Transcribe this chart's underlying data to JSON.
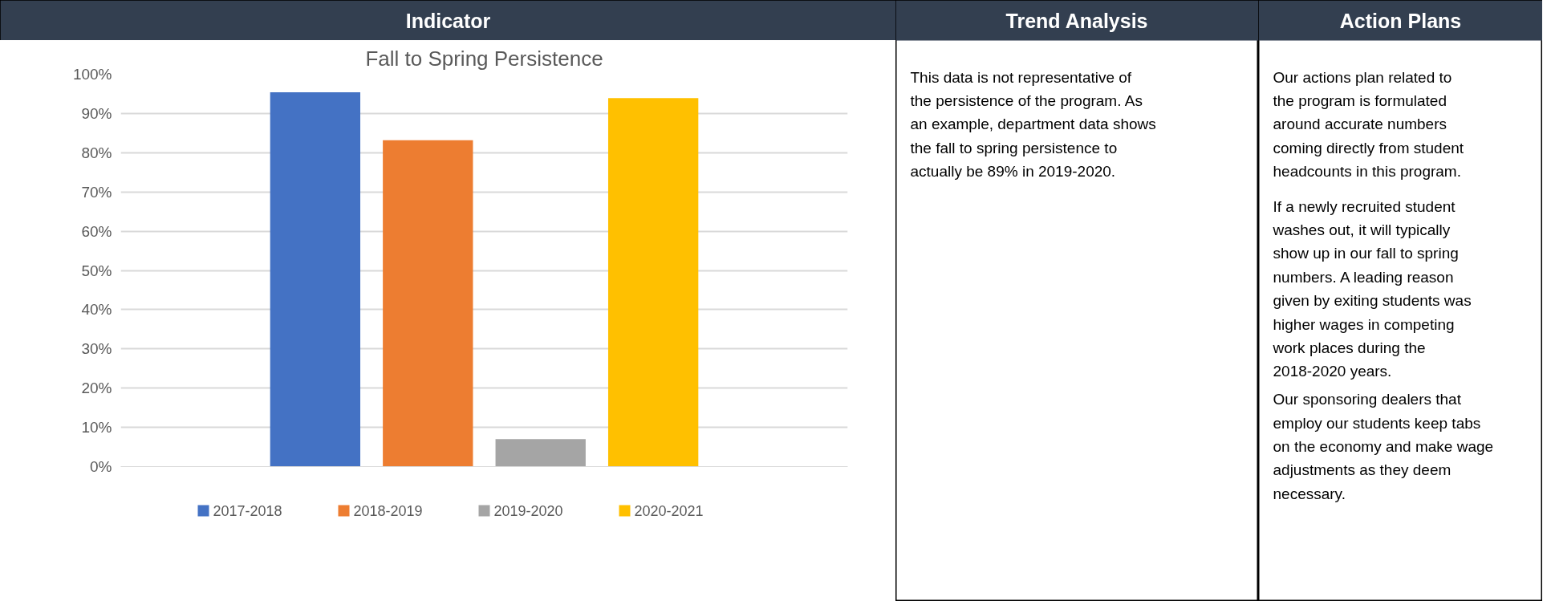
{
  "chart_data": [
    {
      "type": "other",
      "title": "Indicator"
    },
    {
      "type": "bar",
      "title": "Fall to Spring Persistence",
      "categories": [
        null
      ],
      "series": [
        {
          "name": "2017-2018",
          "color": "#4472c4",
          "values": [
            95.4
          ]
        },
        {
          "name": "2018-2019",
          "color": "#ed7d31",
          "values": [
            83.2
          ]
        },
        {
          "name": "2019-2020",
          "color": "#a5a5a5",
          "values": [
            7.0
          ]
        },
        {
          "name": "2020-2021",
          "color": "#ffc000",
          "values": [
            93.9
          ]
        }
      ],
      "ylim": [
        0,
        100
      ],
      "yticks": [
        {
          "value": 0,
          "label": "0%"
        },
        {
          "value": 10,
          "label": "10%"
        },
        {
          "value": 20,
          "label": "20%"
        },
        {
          "value": 30,
          "label": "30%"
        },
        {
          "value": 40,
          "label": "40%"
        },
        {
          "value": 50,
          "label": "50%"
        },
        {
          "value": 60,
          "label": "60%"
        },
        {
          "value": 70,
          "label": "70%"
        },
        {
          "value": 80,
          "label": "80%"
        },
        {
          "value": 90,
          "label": "90%"
        },
        {
          "value": 100,
          "label": "100%"
        }
      ],
      "grid": "y",
      "legend": "bottom",
      "tick_labels": "y"
    },
    {
      "type": "other",
      "title": "Trend Analysis",
      "annotations": [
        "This data is not representative of the persistence of the program. As an example, department data shows the fall to spring persistence to actually be 89% in 2019-2020."
      ]
    },
    {
      "type": "other",
      "title": "Action Plans",
      "annotations": [
        "Our actions plan related to the program is formulated around accurate numbers coming directly from student headcounts in this program.",
        "If a newly recruited student washes out, it will typically show up in our fall to spring numbers.  A leading reason given by exiting students was higher wages in competing work places during the 2018-2020 years.",
        "Our sponsoring dealers that employ our students keep tabs on the economy and make wage adjustments as they deem necessary."
      ]
    }
  ]
}
